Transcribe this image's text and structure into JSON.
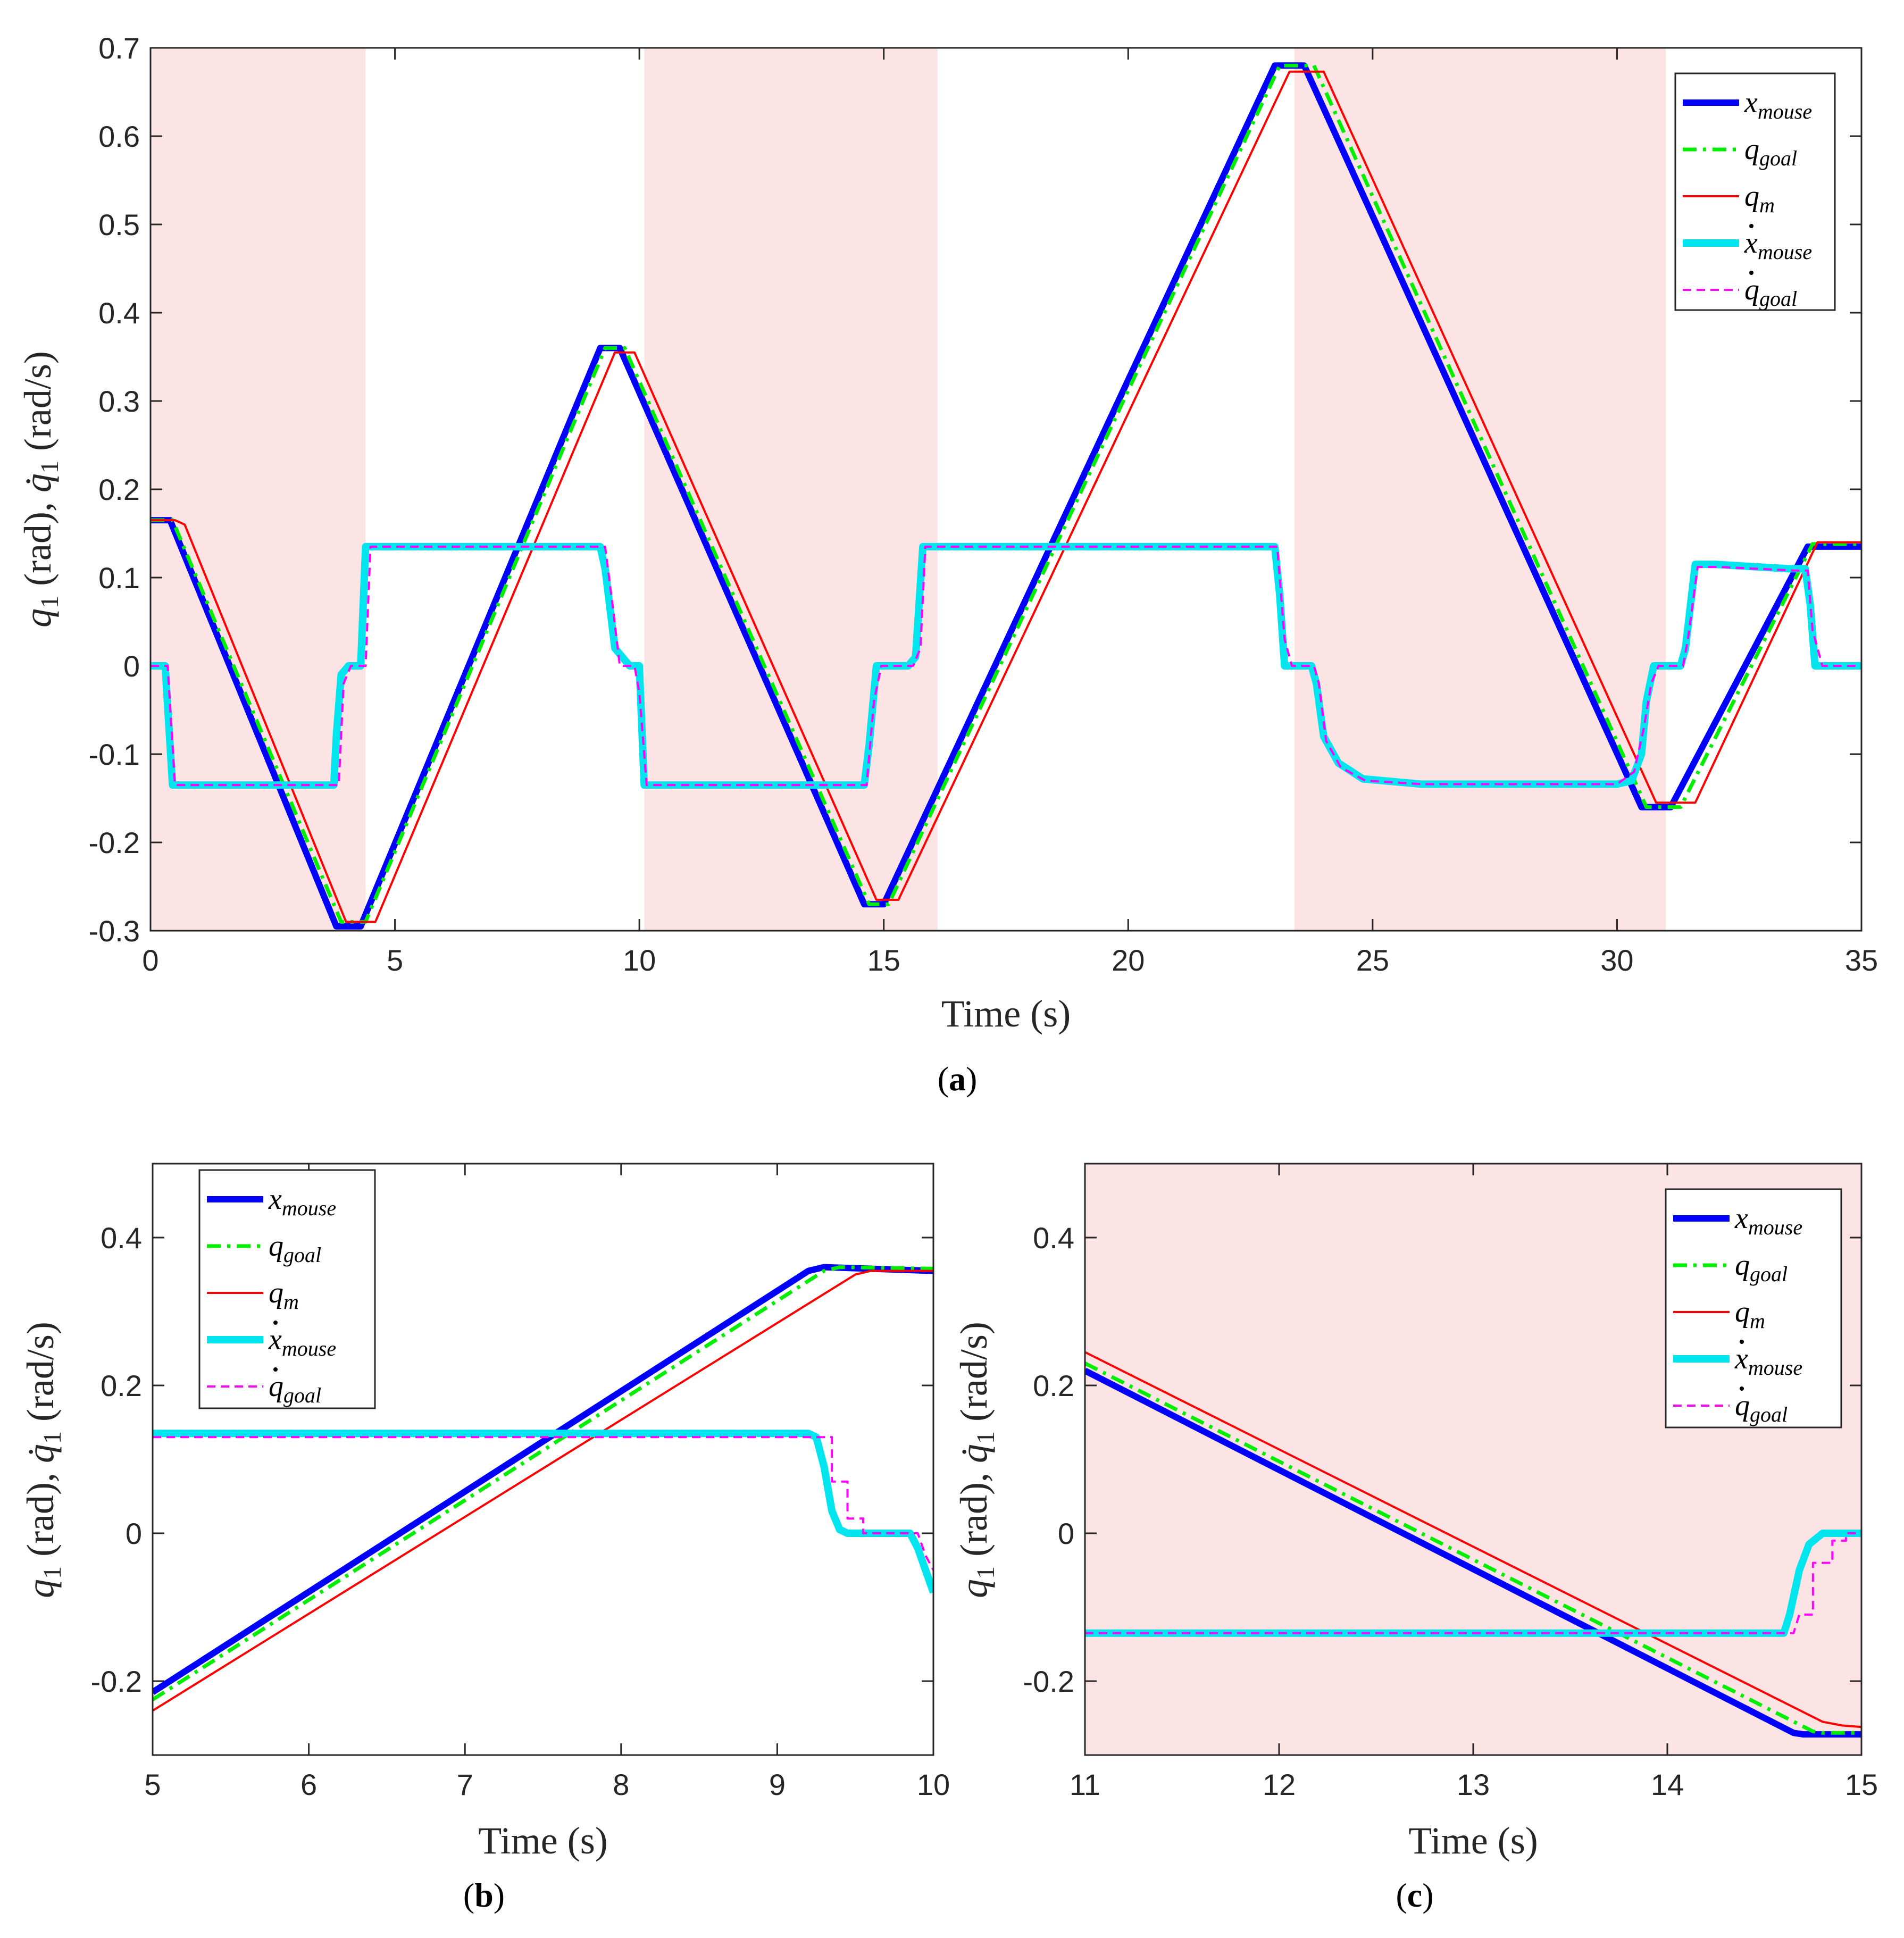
{
  "chart_data": [
    {
      "type": "line",
      "panel": "a",
      "caption": "a",
      "xlabel": "Time (s)",
      "ylabel": "q1 (rad), q̇1 (rad/s)",
      "ylabel_parts": {
        "q": "q",
        "sub": "1",
        "rad": "(rad),",
        "qdot": "q̇",
        "sub2": "1",
        "rads": "(rad/s)"
      },
      "xlim": [
        0,
        35
      ],
      "ylim": [
        -0.3,
        0.7
      ],
      "xticks": [
        0,
        5,
        10,
        15,
        20,
        25,
        30,
        35
      ],
      "xtick_labels": [
        "0",
        "5",
        "10",
        "15",
        "20",
        "25",
        "30",
        "35"
      ],
      "yticks": [
        -0.3,
        -0.2,
        -0.1,
        0,
        0.1,
        0.2,
        0.3,
        0.4,
        0.5,
        0.6,
        0.7
      ],
      "ytick_labels": [
        "-0.3",
        "-0.2",
        "-0.1",
        "0",
        "0.1",
        "0.2",
        "0.3",
        "0.4",
        "0.5",
        "0.6",
        "0.7"
      ],
      "shaded_intervals": [
        [
          0,
          4.4
        ],
        [
          10.1,
          16.1
        ],
        [
          23.4,
          31.0
        ]
      ],
      "shade_color": "#fce4e4",
      "legend_location": "top-right",
      "series": [
        {
          "name": "x_mouse",
          "base": "x",
          "sub": "mouse",
          "dot": false,
          "color": "#0000ff",
          "width": 12,
          "dash": "",
          "x": [
            0,
            0.4,
            3.8,
            4.3,
            9.2,
            9.6,
            14.6,
            15.0,
            23.0,
            23.6,
            30.5,
            31.1,
            33.9,
            35
          ],
          "y": [
            0.165,
            0.165,
            -0.295,
            -0.295,
            0.36,
            0.36,
            -0.27,
            -0.27,
            0.68,
            0.68,
            -0.16,
            -0.16,
            0.135,
            0.135
          ]
        },
        {
          "name": "q_goal",
          "base": "q",
          "sub": "goal",
          "dot": false,
          "color": "#00ee00",
          "width": 7,
          "dash": "26 12 6 12",
          "x": [
            0,
            0.45,
            3.9,
            4.4,
            9.3,
            9.7,
            14.7,
            15.1,
            23.1,
            23.8,
            30.6,
            31.3,
            34.0,
            35
          ],
          "y": [
            0.165,
            0.165,
            -0.29,
            -0.29,
            0.36,
            0.36,
            -0.27,
            -0.27,
            0.68,
            0.68,
            -0.16,
            -0.16,
            0.138,
            0.138
          ]
        },
        {
          "name": "q_m",
          "base": "q",
          "sub": "m",
          "dot": false,
          "color": "#ff0000",
          "width": 4,
          "dash": "",
          "x": [
            0,
            0.5,
            0.7,
            4.0,
            4.6,
            9.5,
            9.9,
            14.85,
            15.3,
            23.3,
            24.0,
            30.8,
            31.6,
            34.1,
            35
          ],
          "y": [
            0.165,
            0.165,
            0.16,
            -0.29,
            -0.29,
            0.355,
            0.355,
            -0.265,
            -0.265,
            0.673,
            0.673,
            -0.155,
            -0.155,
            0.14,
            0.14
          ]
        },
        {
          "name": "xdot_mouse",
          "base": "x",
          "sub": "mouse",
          "dot": true,
          "color": "#00e5ee",
          "width": 14,
          "dash": "",
          "x": [
            0,
            0.3,
            0.45,
            3.75,
            3.8,
            3.9,
            4.05,
            4.3,
            4.4,
            9.2,
            9.3,
            9.5,
            9.8,
            10.0,
            10.1,
            14.6,
            14.7,
            14.85,
            15.5,
            15.65,
            15.8,
            23.0,
            23.1,
            23.2,
            23.75,
            23.85,
            24.0,
            24.3,
            24.8,
            26,
            30,
            30.3,
            30.5,
            30.6,
            30.75,
            31.3,
            31.4,
            31.6,
            32.0,
            33.5,
            33.85,
            33.95,
            34.05,
            35
          ],
          "y": [
            0,
            0,
            -0.135,
            -0.135,
            -0.08,
            -0.01,
            0,
            0,
            0.135,
            0.135,
            0.11,
            0.02,
            0,
            0,
            -0.135,
            -0.135,
            -0.09,
            0,
            0,
            0.01,
            0.135,
            0.135,
            0.08,
            0,
            0,
            -0.02,
            -0.08,
            -0.11,
            -0.128,
            -0.134,
            -0.134,
            -0.13,
            -0.1,
            -0.04,
            0,
            0,
            0.02,
            0.115,
            0.115,
            0.11,
            0.11,
            0.07,
            0,
            0
          ]
        },
        {
          "name": "qdot_goal",
          "base": "q",
          "sub": "goal",
          "dot": true,
          "color": "#ff00ff",
          "width": 4,
          "dash": "16 10",
          "x": [
            0,
            0.35,
            0.5,
            3.85,
            3.95,
            4.1,
            4.4,
            4.5,
            9.3,
            9.45,
            9.6,
            9.9,
            10.0,
            10.15,
            14.65,
            14.8,
            14.95,
            15.6,
            15.75,
            15.85,
            23.05,
            23.2,
            23.35,
            23.8,
            23.9,
            24.05,
            24.35,
            24.85,
            26,
            30,
            30.35,
            30.55,
            30.7,
            30.85,
            31.35,
            31.45,
            31.65,
            32.1,
            33.6,
            33.9,
            34.0,
            34.2,
            35
          ],
          "y": [
            0,
            0,
            -0.135,
            -0.135,
            -0.02,
            0,
            0,
            0.135,
            0.135,
            0.07,
            0,
            0,
            -0.03,
            -0.135,
            -0.135,
            -0.04,
            0,
            0,
            0.02,
            0.135,
            0.135,
            0.03,
            0,
            0,
            -0.02,
            -0.085,
            -0.115,
            -0.13,
            -0.134,
            -0.134,
            -0.12,
            -0.07,
            -0.02,
            0,
            0,
            0.03,
            0.112,
            0.112,
            0.108,
            0.108,
            0.04,
            0,
            0
          ]
        }
      ]
    },
    {
      "type": "line",
      "panel": "b",
      "caption": "b",
      "xlabel": "Time (s)",
      "ylabel": "q1 (rad), q̇1 (rad/s)",
      "ylabel_parts": {
        "q": "q",
        "sub": "1",
        "rad": "(rad),",
        "qdot": "q̇",
        "sub2": "1",
        "rads": "(rad/s)"
      },
      "xlim": [
        5,
        10
      ],
      "ylim": [
        -0.3,
        0.5
      ],
      "xticks": [
        5,
        6,
        7,
        8,
        9,
        10
      ],
      "xtick_labels": [
        "5",
        "6",
        "7",
        "8",
        "9",
        "10"
      ],
      "yticks": [
        -0.2,
        0,
        0.2,
        0.4
      ],
      "ytick_labels": [
        "-0.2",
        "0",
        "0.2",
        "0.4"
      ],
      "shaded_intervals": [],
      "shade_color": "#fce4e4",
      "legend_location": "top-left",
      "series": [
        {
          "name": "x_mouse",
          "base": "x",
          "sub": "mouse",
          "dot": false,
          "color": "#0000ff",
          "width": 12,
          "dash": "",
          "x": [
            5,
            9.2,
            9.3,
            10
          ],
          "y": [
            -0.215,
            0.355,
            0.36,
            0.355
          ]
        },
        {
          "name": "q_goal",
          "base": "q",
          "sub": "goal",
          "dot": false,
          "color": "#00ee00",
          "width": 7,
          "dash": "26 12 6 12",
          "x": [
            5,
            9.3,
            9.4,
            10
          ],
          "y": [
            -0.225,
            0.355,
            0.36,
            0.358
          ]
        },
        {
          "name": "q_m",
          "base": "q",
          "sub": "m",
          "dot": false,
          "color": "#ff0000",
          "width": 4,
          "dash": "",
          "x": [
            5,
            9.5,
            9.6,
            10
          ],
          "y": [
            -0.24,
            0.35,
            0.355,
            0.355
          ]
        },
        {
          "name": "xdot_mouse",
          "base": "x",
          "sub": "mouse",
          "dot": true,
          "color": "#00e5ee",
          "width": 14,
          "dash": "",
          "x": [
            5,
            9.2,
            9.25,
            9.3,
            9.35,
            9.4,
            9.45,
            9.85,
            9.9,
            10.0
          ],
          "y": [
            0.135,
            0.135,
            0.13,
            0.09,
            0.03,
            0.005,
            0,
            0,
            -0.02,
            -0.08
          ]
        },
        {
          "name": "qdot_goal",
          "base": "q",
          "sub": "goal",
          "dot": true,
          "color": "#ff00ff",
          "width": 4,
          "dash": "16 10",
          "x": [
            5,
            9.3,
            9.35,
            9.35,
            9.45,
            9.45,
            9.55,
            9.55,
            9.9,
            9.95,
            10.0
          ],
          "y": [
            0.13,
            0.13,
            0.13,
            0.07,
            0.07,
            0.02,
            0.02,
            0,
            0,
            -0.03,
            -0.05
          ]
        }
      ]
    },
    {
      "type": "line",
      "panel": "c",
      "caption": "c",
      "xlabel": "Time (s)",
      "ylabel": "q1 (rad), q̇1 (rad/s)",
      "ylabel_parts": {
        "q": "q",
        "sub": "1",
        "rad": "(rad),",
        "qdot": "q̇",
        "sub2": "1",
        "rads": "(rad/s)"
      },
      "xlim": [
        11,
        15
      ],
      "ylim": [
        -0.3,
        0.5
      ],
      "xticks": [
        11,
        12,
        13,
        14,
        15
      ],
      "xtick_labels": [
        "11",
        "12",
        "13",
        "14",
        "15"
      ],
      "yticks": [
        -0.2,
        0,
        0.2,
        0.4
      ],
      "ytick_labels": [
        "-0.2",
        "0",
        "0.2",
        "0.4"
      ],
      "shaded_intervals": [
        [
          11,
          15
        ]
      ],
      "shade_color": "#fce4e4",
      "legend_location": "top-right",
      "series": [
        {
          "name": "x_mouse",
          "base": "x",
          "sub": "mouse",
          "dot": false,
          "color": "#0000ff",
          "width": 12,
          "dash": "",
          "x": [
            11,
            14.65,
            14.7,
            15
          ],
          "y": [
            0.22,
            -0.27,
            -0.272,
            -0.272
          ]
        },
        {
          "name": "q_goal",
          "base": "q",
          "sub": "goal",
          "dot": false,
          "color": "#00ee00",
          "width": 7,
          "dash": "26 12 6 12",
          "x": [
            11,
            14.75,
            14.8,
            15
          ],
          "y": [
            0.23,
            -0.268,
            -0.27,
            -0.27
          ]
        },
        {
          "name": "q_m",
          "base": "q",
          "sub": "m",
          "dot": false,
          "color": "#ff0000",
          "width": 4,
          "dash": "",
          "x": [
            11,
            14.8,
            14.9,
            15
          ],
          "y": [
            0.245,
            -0.255,
            -0.26,
            -0.262
          ]
        },
        {
          "name": "xdot_mouse",
          "base": "x",
          "sub": "mouse",
          "dot": true,
          "color": "#00e5ee",
          "width": 14,
          "dash": "",
          "x": [
            11,
            14.6,
            14.63,
            14.68,
            14.73,
            14.8,
            15
          ],
          "y": [
            -0.135,
            -0.135,
            -0.11,
            -0.05,
            -0.015,
            0,
            0
          ]
        },
        {
          "name": "qdot_goal",
          "base": "q",
          "sub": "goal",
          "dot": true,
          "color": "#ff00ff",
          "width": 4,
          "dash": "16 10",
          "x": [
            11,
            14.65,
            14.68,
            14.75,
            14.75,
            14.85,
            14.85,
            14.92,
            14.92,
            15
          ],
          "y": [
            -0.135,
            -0.135,
            -0.11,
            -0.11,
            -0.04,
            -0.04,
            -0.01,
            -0.01,
            0,
            0
          ]
        }
      ]
    }
  ]
}
